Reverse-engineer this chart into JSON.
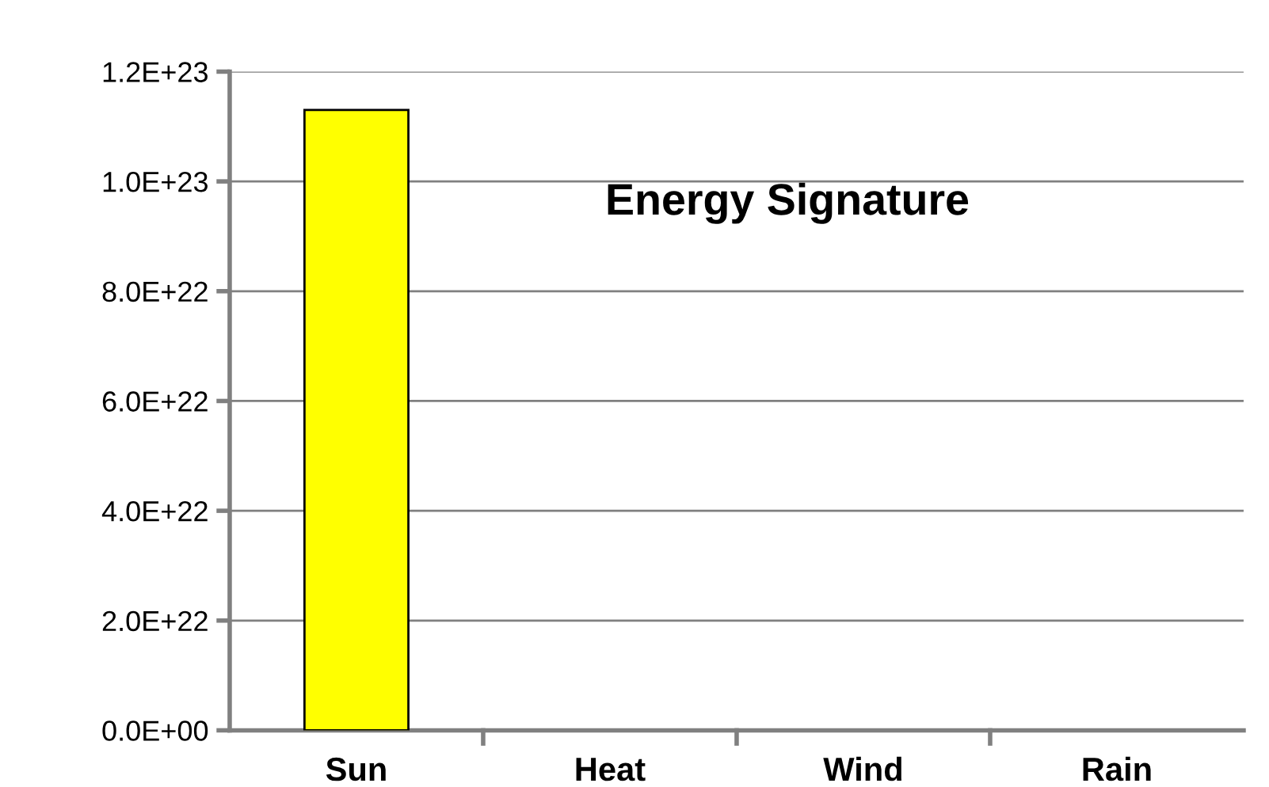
{
  "chart_data": {
    "type": "bar",
    "title": "Energy Signature",
    "categories": [
      "Sun",
      "Heat",
      "Wind",
      "Rain"
    ],
    "values": [
      1.13e+23,
      0,
      0,
      0
    ],
    "color": "#ffff00",
    "ylim": [
      0,
      1.2e+23
    ],
    "yticks": [
      {
        "value": 0,
        "label": "0.0E+00"
      },
      {
        "value": 2e+22,
        "label": "2.0E+22"
      },
      {
        "value": 4e+22,
        "label": "4.0E+22"
      },
      {
        "value": 6e+22,
        "label": "6.0E+22"
      },
      {
        "value": 8e+22,
        "label": "8.0E+22"
      },
      {
        "value": 1e+23,
        "label": "1.0E+23"
      },
      {
        "value": 1.2e+23,
        "label": "1.2E+23"
      }
    ],
    "grid": "y"
  }
}
